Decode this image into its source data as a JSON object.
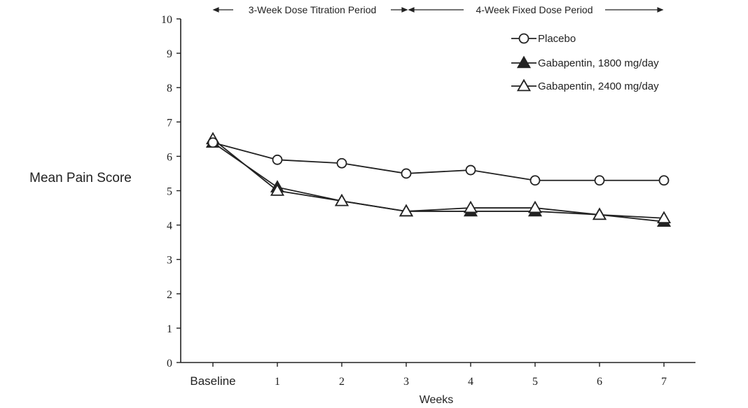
{
  "chart_data": {
    "type": "line",
    "ylabel": "Mean Pain Score",
    "xlabel": "Weeks",
    "categories": [
      "Baseline",
      "1",
      "2",
      "3",
      "4",
      "5",
      "6",
      "7"
    ],
    "ylim": [
      0,
      10
    ],
    "yticks": [
      "0",
      "1",
      "2",
      "3",
      "4",
      "5",
      "6",
      "7",
      "8",
      "9",
      "10"
    ],
    "grid": false,
    "legend_position": "top-right",
    "period_labels": {
      "titration": "3-Week Dose Titration  Period",
      "fixed": "4-Week Fixed Dose Period"
    },
    "series": [
      {
        "name": "Placebo",
        "marker": "open-circle",
        "values": [
          6.4,
          5.9,
          5.8,
          5.5,
          5.6,
          5.3,
          5.3,
          5.3
        ]
      },
      {
        "name": "Gabapentin, 1800 mg/day",
        "marker": "filled-triangle",
        "values": [
          6.4,
          5.1,
          4.7,
          4.4,
          4.4,
          4.4,
          4.3,
          4.1
        ]
      },
      {
        "name": "Gabapentin, 2400 mg/day",
        "marker": "open-triangle",
        "values": [
          6.5,
          5.0,
          4.7,
          4.4,
          4.5,
          4.5,
          4.3,
          4.2
        ]
      }
    ]
  }
}
